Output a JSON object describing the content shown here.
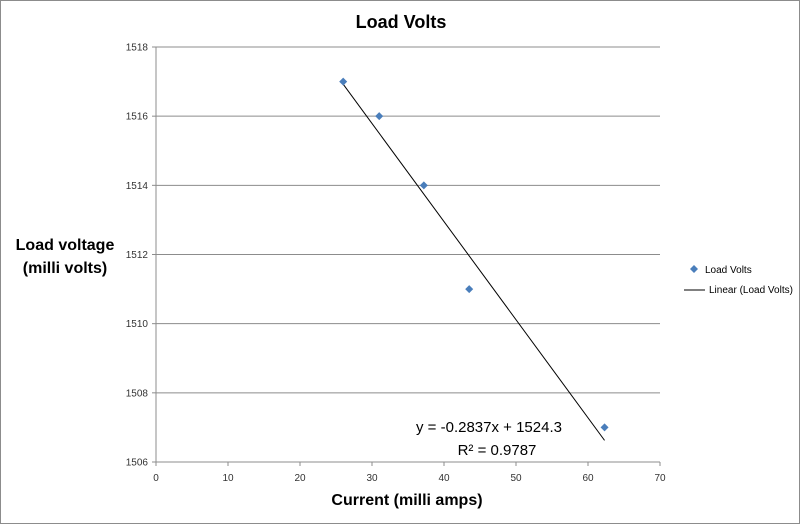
{
  "chart_data": {
    "type": "scatter",
    "title": "Load Volts",
    "xlabel": "Current (milli amps)",
    "ylabel_lines": [
      "Load voltage",
      "(milli volts)"
    ],
    "xlim": [
      0,
      70
    ],
    "ylim": [
      1506,
      1518
    ],
    "x_ticks": [
      0,
      10,
      20,
      30,
      40,
      50,
      60,
      70
    ],
    "y_ticks": [
      1506,
      1508,
      1510,
      1512,
      1514,
      1516,
      1518
    ],
    "grid": "horizontal",
    "legend_position": "right",
    "series": [
      {
        "name": "Load Volts",
        "color": "#4a7ebb",
        "marker": "diamond",
        "x": [
          26,
          31,
          37.2,
          43.5,
          62.3
        ],
        "y": [
          1517,
          1516,
          1514,
          1511,
          1507
        ]
      }
    ],
    "trendline": {
      "name": "Linear (Load Volts)",
      "type": "linear",
      "color": "#000000",
      "slope": -0.2837,
      "intercept": 1524.3,
      "x_range": [
        26,
        62.3
      ],
      "equation_label": "y = -0.2837x + 1524.3",
      "r2_label": "R² = 0.9787"
    }
  }
}
